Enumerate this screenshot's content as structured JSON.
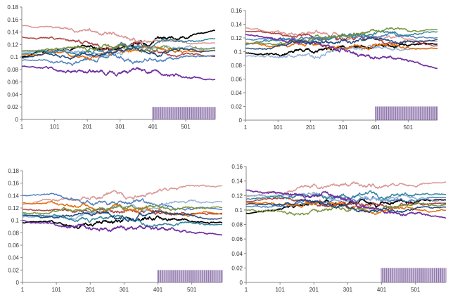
{
  "chart_data": [
    {
      "type": "line",
      "panel": "top-left",
      "ylim": [
        0,
        0.18
      ],
      "yticks": [
        "0",
        "0.02",
        "0.04",
        "0.06",
        "0.08",
        "0.1",
        "0.12",
        "0.14",
        "0.16",
        "0.18"
      ],
      "xlim": [
        1,
        591
      ],
      "xticks": [
        "1",
        "101",
        "201",
        "301",
        "401",
        "501"
      ],
      "rug": {
        "from": 400,
        "to": 591,
        "height": 0.02,
        "count": 62
      },
      "series": [
        {
          "name": "black",
          "start": 0.1,
          "end": 0.142,
          "seed": 11
        },
        {
          "name": "rose",
          "start": 0.151,
          "end": 0.122,
          "seed": 12
        },
        {
          "name": "dark red",
          "start": 0.132,
          "end": 0.1,
          "seed": 13
        },
        {
          "name": "blue",
          "start": 0.095,
          "end": 0.105,
          "seed": 14
        },
        {
          "name": "light blue",
          "start": 0.108,
          "end": 0.115,
          "seed": 15
        },
        {
          "name": "orange",
          "start": 0.103,
          "end": 0.11,
          "seed": 16
        },
        {
          "name": "teal",
          "start": 0.105,
          "end": 0.127,
          "seed": 17
        },
        {
          "name": "green",
          "start": 0.11,
          "end": 0.113,
          "seed": 18
        },
        {
          "name": "purple",
          "start": 0.085,
          "end": 0.063,
          "seed": 19
        },
        {
          "name": "dark blue",
          "start": 0.098,
          "end": 0.11,
          "seed": 20
        }
      ]
    },
    {
      "type": "line",
      "panel": "top-right",
      "ylim": [
        0,
        0.16
      ],
      "yticks": [
        "0",
        "0.02",
        "0.04",
        "0.06",
        "0.08",
        "0.1",
        "0.12",
        "0.14",
        "0.16"
      ],
      "xlim": [
        1,
        591
      ],
      "xticks": [
        "1",
        "101",
        "201",
        "301",
        "401",
        "501"
      ],
      "rug": {
        "from": 400,
        "to": 591,
        "height": 0.02,
        "count": 62
      },
      "series": [
        {
          "name": "black",
          "start": 0.098,
          "end": 0.112,
          "seed": 21
        },
        {
          "name": "rose",
          "start": 0.135,
          "end": 0.115,
          "seed": 22
        },
        {
          "name": "dark red",
          "start": 0.13,
          "end": 0.11,
          "seed": 23
        },
        {
          "name": "blue",
          "start": 0.118,
          "end": 0.122,
          "seed": 24
        },
        {
          "name": "light blue",
          "start": 0.093,
          "end": 0.105,
          "seed": 25
        },
        {
          "name": "orange",
          "start": 0.112,
          "end": 0.105,
          "seed": 26
        },
        {
          "name": "teal",
          "start": 0.11,
          "end": 0.128,
          "seed": 27
        },
        {
          "name": "green",
          "start": 0.112,
          "end": 0.133,
          "seed": 28
        },
        {
          "name": "purple",
          "start": 0.125,
          "end": 0.076,
          "seed": 29
        },
        {
          "name": "dark blue",
          "start": 0.105,
          "end": 0.118,
          "seed": 30
        }
      ]
    },
    {
      "type": "line",
      "panel": "bottom-left",
      "ylim": [
        0,
        0.18
      ],
      "yticks": [
        "0",
        "0.02",
        "0.04",
        "0.06",
        "0.08",
        "0.1",
        "0.12",
        "0.14",
        "0.16",
        "0.18"
      ],
      "xlim": [
        1,
        591
      ],
      "xticks": [
        "1",
        "101",
        "201",
        "301",
        "401",
        "501"
      ],
      "rug": {
        "from": 400,
        "to": 591,
        "height": 0.02,
        "count": 62
      },
      "series": [
        {
          "name": "black",
          "start": 0.096,
          "end": 0.098,
          "seed": 31
        },
        {
          "name": "rose",
          "start": 0.125,
          "end": 0.155,
          "seed": 32
        },
        {
          "name": "dark red",
          "start": 0.118,
          "end": 0.112,
          "seed": 33
        },
        {
          "name": "blue",
          "start": 0.14,
          "end": 0.118,
          "seed": 34
        },
        {
          "name": "light blue",
          "start": 0.105,
          "end": 0.13,
          "seed": 35
        },
        {
          "name": "orange",
          "start": 0.128,
          "end": 0.11,
          "seed": 36
        },
        {
          "name": "teal",
          "start": 0.11,
          "end": 0.092,
          "seed": 37
        },
        {
          "name": "green",
          "start": 0.113,
          "end": 0.12,
          "seed": 38
        },
        {
          "name": "purple",
          "start": 0.1,
          "end": 0.076,
          "seed": 39
        },
        {
          "name": "dark blue",
          "start": 0.108,
          "end": 0.103,
          "seed": 40
        }
      ]
    },
    {
      "type": "line",
      "panel": "bottom-right",
      "ylim": [
        0,
        0.16
      ],
      "yticks": [
        "0",
        "0.02",
        "0.04",
        "0.06",
        "0.08",
        "0.1",
        "0.12",
        "0.14",
        "0.16"
      ],
      "xlim": [
        1,
        591
      ],
      "xticks": [
        "1",
        "101",
        "201",
        "301",
        "401",
        "501"
      ],
      "rug": {
        "from": 400,
        "to": 591,
        "height": 0.02,
        "count": 62
      },
      "series": [
        {
          "name": "black",
          "start": 0.095,
          "end": 0.115,
          "seed": 41
        },
        {
          "name": "rose",
          "start": 0.118,
          "end": 0.14,
          "seed": 42
        },
        {
          "name": "dark red",
          "start": 0.112,
          "end": 0.11,
          "seed": 43
        },
        {
          "name": "blue",
          "start": 0.105,
          "end": 0.118,
          "seed": 44
        },
        {
          "name": "light blue",
          "start": 0.12,
          "end": 0.112,
          "seed": 45
        },
        {
          "name": "orange",
          "start": 0.11,
          "end": 0.1,
          "seed": 46
        },
        {
          "name": "teal",
          "start": 0.115,
          "end": 0.12,
          "seed": 47
        },
        {
          "name": "green",
          "start": 0.1,
          "end": 0.108,
          "seed": 48
        },
        {
          "name": "purple",
          "start": 0.128,
          "end": 0.088,
          "seed": 49
        },
        {
          "name": "dark blue",
          "start": 0.108,
          "end": 0.103,
          "seed": 50
        }
      ]
    }
  ],
  "colors": {
    "black": "#000000",
    "rose": "#d99694",
    "dark red": "#a9423f",
    "blue": "#4f81bd",
    "light blue": "#95b3d7",
    "orange": "#e46c0a",
    "teal": "#31859c",
    "green": "#77933c",
    "purple": "#7030a0",
    "dark blue": "#1f497d",
    "axis": "#868686",
    "rug": "#8064a2"
  }
}
